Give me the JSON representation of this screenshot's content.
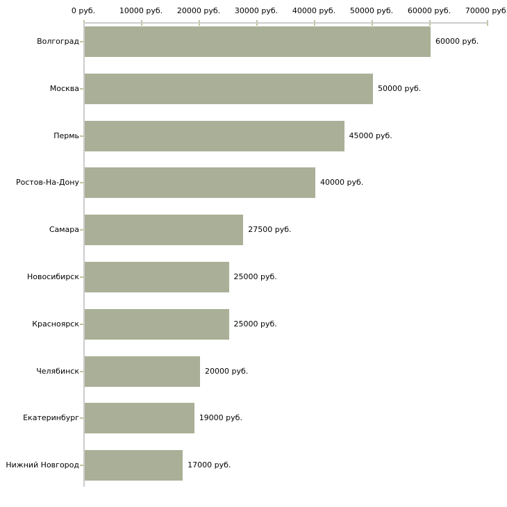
{
  "chart_data": {
    "type": "bar",
    "orientation": "horizontal",
    "title": "",
    "xlabel": "",
    "ylabel": "",
    "unit_suffix": " руб.",
    "categories": [
      "Волгоград",
      "Москва",
      "Пермь",
      "Ростов-На-Дону",
      "Самара",
      "Новосибирск",
      "Красноярск",
      "Челябинск",
      "Екатеринбург",
      "Нижний Новгород"
    ],
    "values": [
      60000,
      50000,
      45000,
      40000,
      27500,
      25000,
      25000,
      20000,
      19000,
      17000
    ],
    "value_labels": [
      "60000 руб.",
      "50000 руб.",
      "45000 руб.",
      "40000 руб.",
      "27500 руб.",
      "25000 руб.",
      "25000 руб.",
      "20000 руб.",
      "19000 руб.",
      "17000 руб."
    ],
    "x_axis": {
      "min": 0,
      "max": 70000,
      "ticks": [
        0,
        10000,
        20000,
        30000,
        40000,
        50000,
        60000,
        70000
      ],
      "tick_labels": [
        "0 руб.",
        "10000 руб.",
        "20000 руб.",
        "30000 руб.",
        "40000 руб.",
        "50000 руб.",
        "60000 руб.",
        "70000 руб."
      ],
      "position": "top"
    },
    "grid": false,
    "legend": null,
    "colors": {
      "bar": "#a9b097",
      "axis_line": "#cccccc",
      "tick_mark": "#c2c29a",
      "text": "#000000",
      "background": "#ffffff"
    }
  }
}
